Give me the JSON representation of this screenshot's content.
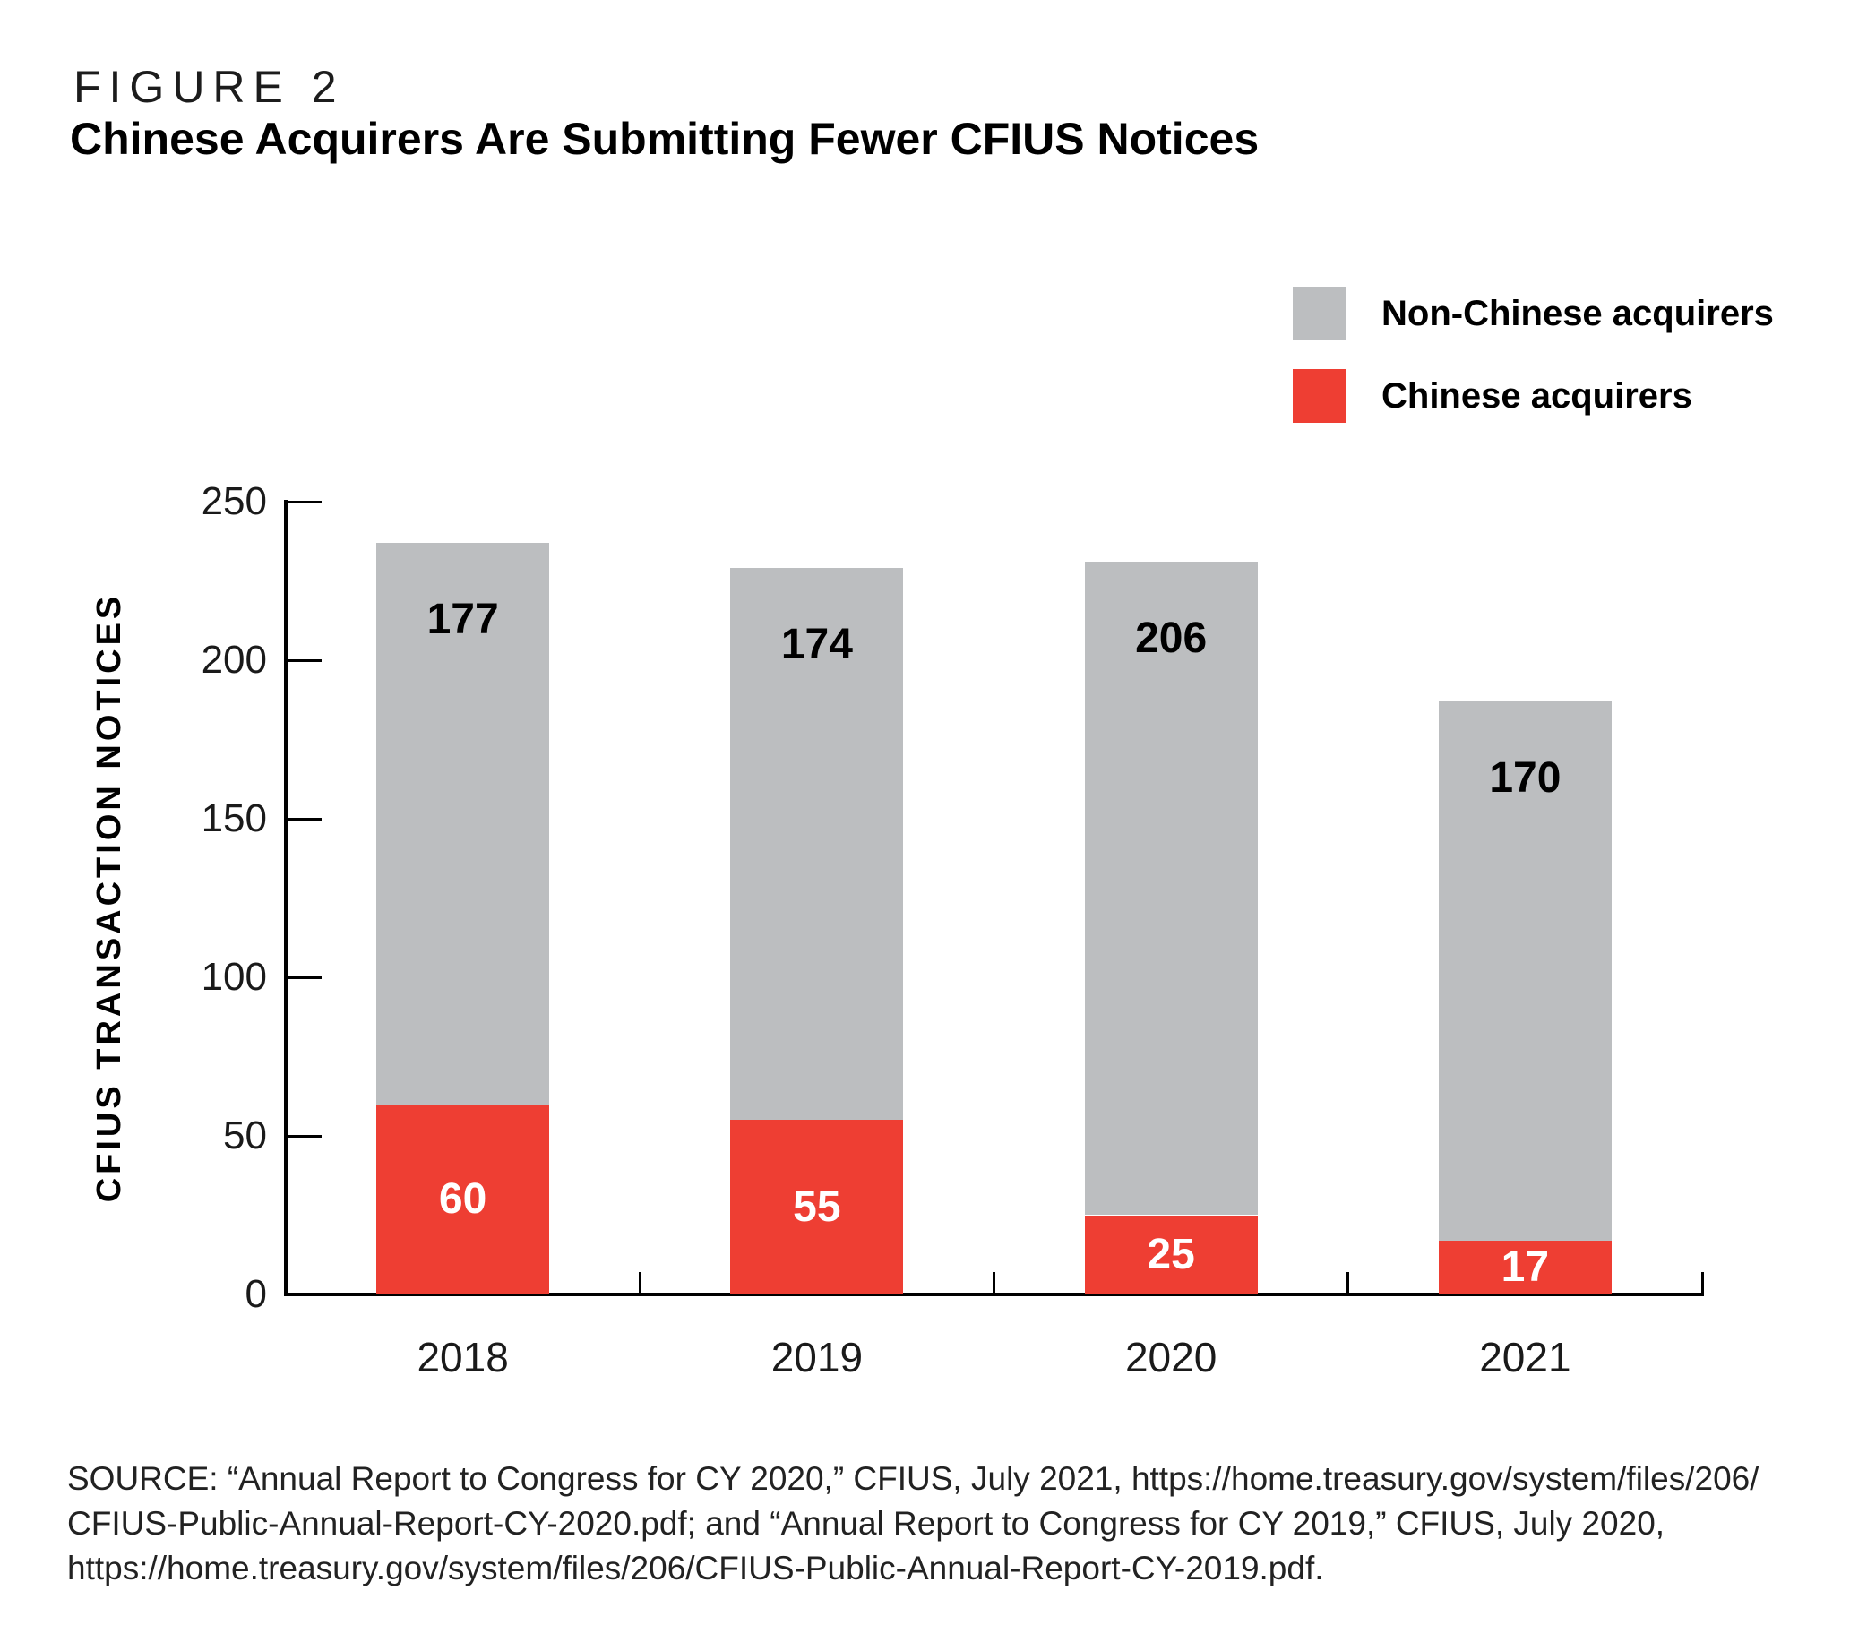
{
  "figure": {
    "label": "FIGURE 2",
    "title": "Chinese Acquirers Are Submitting Fewer CFIUS Notices"
  },
  "legend": {
    "items": [
      {
        "label": "Non-Chinese acquirers",
        "color": "#BCBEC0"
      },
      {
        "label": "Chinese acquirers",
        "color": "#EE3E33"
      }
    ]
  },
  "chart_data": {
    "type": "bar",
    "stacked": true,
    "title": "Chinese Acquirers Are Submitting Fewer CFIUS Notices",
    "categories": [
      "2018",
      "2019",
      "2020",
      "2021"
    ],
    "series": [
      {
        "name": "Chinese acquirers",
        "color": "#EE3E33",
        "values": [
          60,
          55,
          25,
          17
        ],
        "label_color": "#FFFFFF"
      },
      {
        "name": "Non-Chinese acquirers",
        "color": "#BCBEC0",
        "values": [
          177,
          174,
          206,
          170
        ],
        "label_color": "#000000"
      }
    ],
    "totals": [
      237,
      229,
      231,
      187
    ],
    "xlabel": "",
    "ylabel": "CFIUS TRANSACTION NOTICES",
    "ylim": [
      0,
      250
    ],
    "yticks": [
      0,
      50,
      100,
      150,
      200,
      250
    ],
    "grid": false,
    "legend_position": "top-right",
    "bar_value_labels": true,
    "axis_color": "#000000",
    "text_color": "#1A1A1A"
  },
  "source": {
    "lines": [
      "SOURCE: “Annual Report to Congress for CY 2020,” CFIUS, July 2021, https://home.treasury.gov/system/files/206/",
      "CFIUS-Public-Annual-Report-CY-2020.pdf; and “Annual Report to Congress for CY 2019,” CFIUS, July 2020,",
      "https://home.treasury.gov/system/files/206/CFIUS-Public-Annual-Report-CY-2019.pdf."
    ]
  }
}
